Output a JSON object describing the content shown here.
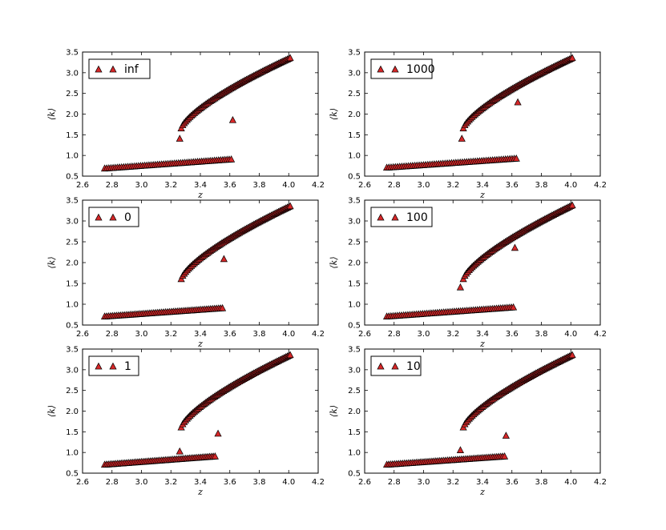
{
  "figure": {
    "background": "#ffffff"
  },
  "style": {
    "marker_fill": "#d62728",
    "marker_edge": "#000000",
    "axis_color": "#000000"
  },
  "chart_data": [
    {
      "type": "scatter",
      "legend": "inf",
      "legend_position": "top-left",
      "xlabel": "z",
      "ylabel": "⟨k⟩",
      "xlim": [
        2.6,
        4.2
      ],
      "ylim": [
        0.5,
        3.5
      ],
      "xticks": [
        "2.6",
        "2.8",
        "3.0",
        "3.2",
        "3.4",
        "3.6",
        "3.8",
        "4.0",
        "4.2"
      ],
      "yticks": [
        "0.5",
        "1.0",
        "1.5",
        "2.0",
        "2.5",
        "3.0",
        "3.5"
      ],
      "lower_branch": {
        "z_start": 2.75,
        "z_end": 3.61,
        "k_start": 0.68,
        "k_end": 0.9
      },
      "upper_branch": {
        "z_start": 3.27,
        "z_end": 4.01,
        "k_start": 1.65,
        "k_end": 3.35
      },
      "outliers": [
        {
          "x": 3.26,
          "y": 1.4
        },
        {
          "x": 3.62,
          "y": 1.85
        }
      ]
    },
    {
      "type": "scatter",
      "legend": "1000",
      "legend_position": "top-left",
      "xlabel": "z",
      "ylabel": "⟨k⟩",
      "xlim": [
        2.6,
        4.2
      ],
      "ylim": [
        0.5,
        3.5
      ],
      "xticks": [
        "2.6",
        "2.8",
        "3.0",
        "3.2",
        "3.4",
        "3.6",
        "3.8",
        "4.0",
        "4.2"
      ],
      "yticks": [
        "0.5",
        "1.0",
        "1.5",
        "2.0",
        "2.5",
        "3.0",
        "3.5"
      ],
      "lower_branch": {
        "z_start": 2.75,
        "z_end": 3.63,
        "k_start": 0.7,
        "k_end": 0.92
      },
      "upper_branch": {
        "z_start": 3.27,
        "z_end": 4.01,
        "k_start": 1.65,
        "k_end": 3.35
      },
      "outliers": [
        {
          "x": 3.26,
          "y": 1.4
        },
        {
          "x": 3.64,
          "y": 2.28
        }
      ]
    },
    {
      "type": "scatter",
      "legend": "0",
      "legend_position": "top-left",
      "xlabel": "z",
      "ylabel": "⟨k⟩",
      "xlim": [
        2.6,
        4.2
      ],
      "ylim": [
        0.5,
        3.5
      ],
      "xticks": [
        "2.6",
        "2.8",
        "3.0",
        "3.2",
        "3.4",
        "3.6",
        "3.8",
        "4.0",
        "4.2"
      ],
      "yticks": [
        "0.5",
        "1.0",
        "1.5",
        "2.0",
        "2.5",
        "3.0",
        "3.5"
      ],
      "lower_branch": {
        "z_start": 2.75,
        "z_end": 3.55,
        "k_start": 0.7,
        "k_end": 0.9
      },
      "upper_branch": {
        "z_start": 3.27,
        "z_end": 4.01,
        "k_start": 1.6,
        "k_end": 3.35
      },
      "outliers": [
        {
          "x": 3.56,
          "y": 2.08
        }
      ]
    },
    {
      "type": "scatter",
      "legend": "100",
      "legend_position": "top-left",
      "xlabel": "z",
      "ylabel": "⟨k⟩",
      "xlim": [
        2.6,
        4.2
      ],
      "ylim": [
        0.5,
        3.5
      ],
      "xticks": [
        "2.6",
        "2.8",
        "3.0",
        "3.2",
        "3.4",
        "3.6",
        "3.8",
        "4.0",
        "4.2"
      ],
      "yticks": [
        "0.5",
        "1.0",
        "1.5",
        "2.0",
        "2.5",
        "3.0",
        "3.5"
      ],
      "lower_branch": {
        "z_start": 2.75,
        "z_end": 3.61,
        "k_start": 0.7,
        "k_end": 0.92
      },
      "upper_branch": {
        "z_start": 3.27,
        "z_end": 4.01,
        "k_start": 1.6,
        "k_end": 3.37
      },
      "outliers": [
        {
          "x": 3.25,
          "y": 1.4
        },
        {
          "x": 3.62,
          "y": 2.35
        }
      ]
    },
    {
      "type": "scatter",
      "legend": "1",
      "legend_position": "top-left",
      "xlabel": "z",
      "ylabel": "⟨k⟩",
      "xlim": [
        2.6,
        4.2
      ],
      "ylim": [
        0.5,
        3.5
      ],
      "xticks": [
        "2.6",
        "2.8",
        "3.0",
        "3.2",
        "3.4",
        "3.6",
        "3.8",
        "4.0",
        "4.2"
      ],
      "yticks": [
        "0.5",
        "1.0",
        "1.5",
        "2.0",
        "2.5",
        "3.0",
        "3.5"
      ],
      "lower_branch": {
        "z_start": 2.75,
        "z_end": 3.5,
        "k_start": 0.7,
        "k_end": 0.9
      },
      "upper_branch": {
        "z_start": 3.27,
        "z_end": 4.01,
        "k_start": 1.6,
        "k_end": 3.35
      },
      "outliers": [
        {
          "x": 3.26,
          "y": 1.02
        },
        {
          "x": 3.52,
          "y": 1.45
        }
      ]
    },
    {
      "type": "scatter",
      "legend": "10",
      "legend_position": "top-left",
      "xlabel": "z",
      "ylabel": "⟨k⟩",
      "xlim": [
        2.6,
        4.2
      ],
      "ylim": [
        0.5,
        3.5
      ],
      "xticks": [
        "2.6",
        "2.8",
        "3.0",
        "3.2",
        "3.4",
        "3.6",
        "3.8",
        "4.0",
        "4.2"
      ],
      "yticks": [
        "0.5",
        "1.0",
        "1.5",
        "2.0",
        "2.5",
        "3.0",
        "3.5"
      ],
      "lower_branch": {
        "z_start": 2.75,
        "z_end": 3.55,
        "k_start": 0.7,
        "k_end": 0.9
      },
      "upper_branch": {
        "z_start": 3.27,
        "z_end": 4.01,
        "k_start": 1.6,
        "k_end": 3.35
      },
      "outliers": [
        {
          "x": 3.25,
          "y": 1.05
        },
        {
          "x": 3.56,
          "y": 1.4
        }
      ]
    }
  ]
}
